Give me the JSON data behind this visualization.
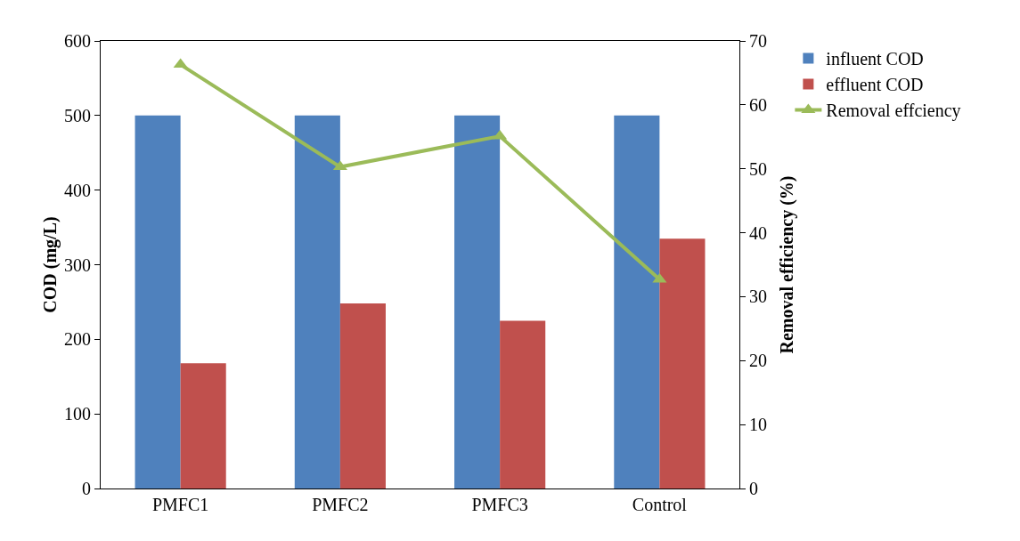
{
  "chart_data": {
    "type": "bar",
    "categories": [
      "PMFC1",
      "PMFC2",
      "PMFC3",
      "Control"
    ],
    "series": [
      {
        "name": "influent COD",
        "color": "#4f81bd",
        "values": [
          500,
          500,
          500,
          500
        ]
      },
      {
        "name": "effluent COD",
        "color": "#c0504d",
        "values": [
          168,
          248,
          225,
          335
        ]
      },
      {
        "name": "Removal effciency",
        "type": "line",
        "axis": "y2",
        "color": "#9bbb59",
        "marker": "triangle",
        "values": [
          66.3,
          50.3,
          55.1,
          32.7
        ]
      }
    ],
    "ylabel": "COD (mg/L)",
    "y2label": "Removal efficiency (%)",
    "ylim": [
      0,
      600
    ],
    "yticks": [
      0,
      100,
      200,
      300,
      400,
      500,
      600
    ],
    "y2lim": [
      0,
      70
    ],
    "y2ticks": [
      0,
      10,
      20,
      30,
      40,
      50,
      60,
      70
    ],
    "grid": false,
    "legend": "top right"
  }
}
